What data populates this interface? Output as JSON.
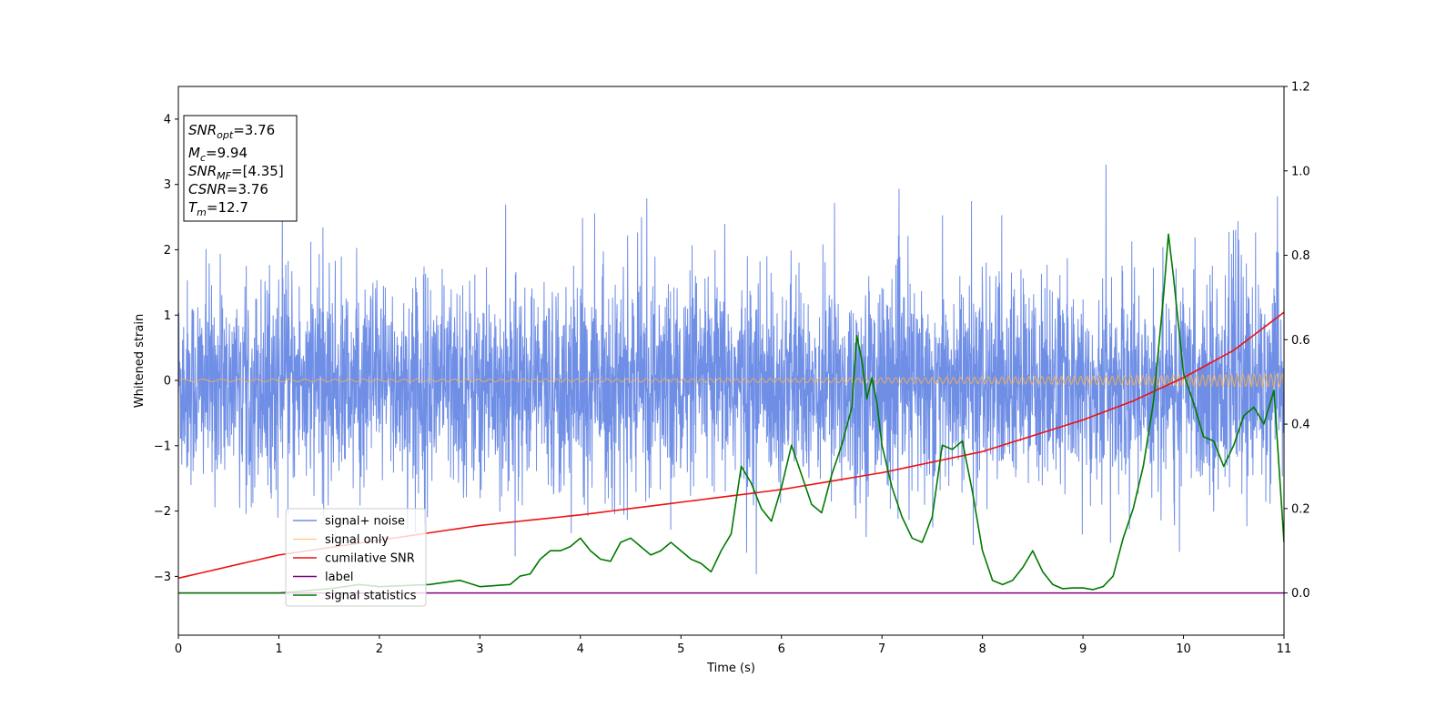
{
  "chart_data": {
    "type": "line",
    "xlabel": "Time (s)",
    "ylabel": "Whitened strain",
    "xlim": [
      0,
      11
    ],
    "ylim": [
      -3.9,
      4.5
    ],
    "y2lim": [
      -0.1,
      1.2
    ],
    "x_ticks": [
      "0",
      "1",
      "2",
      "3",
      "4",
      "5",
      "6",
      "7",
      "8",
      "9",
      "10",
      "11"
    ],
    "y_ticks": [
      "−3",
      "−2",
      "−1",
      "0",
      "1",
      "2",
      "3",
      "4"
    ],
    "y2_ticks": [
      "0.0",
      "0.2",
      "0.4",
      "0.6",
      "0.8",
      "1.0",
      "1.2"
    ],
    "grid": false,
    "legend_position": "lower-left",
    "colors": {
      "noise": "#6f8ee6",
      "signal": "#ffb347",
      "snr": "#ee1111",
      "label": "#800080",
      "stat": "#007a00"
    },
    "annotation": [
      {
        "base": "SNR",
        "sub": "opt",
        "rest": "=3.76"
      },
      {
        "base": "M",
        "sub": "c",
        "rest": "=9.94"
      },
      {
        "base": "SNR",
        "sub": "MF",
        "rest": "=[4.35]"
      },
      {
        "base": "CSNR",
        "sub": "",
        "rest": "=3.76"
      },
      {
        "base": "T",
        "sub": "m",
        "rest": "=12.7"
      }
    ],
    "series": [
      {
        "name": "signal+ noise",
        "axis": "left",
        "style": "noise",
        "noise_std": 0.78,
        "mean": -0.05
      },
      {
        "name": "signal only",
        "axis": "left",
        "amplitude_start": 0.02,
        "amplitude_end": 0.1
      },
      {
        "name": "cumilative SNR",
        "axis": "right",
        "x": [
          0,
          1,
          2,
          3,
          4,
          5,
          6,
          7,
          8,
          9,
          9.5,
          10,
          10.5,
          11
        ],
        "y": [
          0.035,
          0.09,
          0.125,
          0.16,
          0.185,
          0.215,
          0.245,
          0.285,
          0.335,
          0.41,
          0.455,
          0.51,
          0.575,
          0.665
        ]
      },
      {
        "name": "label",
        "axis": "right",
        "x": [
          0,
          11
        ],
        "y": [
          0.0,
          0.0
        ]
      },
      {
        "name": "signal statistics",
        "axis": "right",
        "x": [
          0,
          1,
          1.5,
          1.8,
          2,
          2.5,
          2.8,
          3,
          3.3,
          3.4,
          3.5,
          3.6,
          3.7,
          3.8,
          3.9,
          4.0,
          4.1,
          4.2,
          4.3,
          4.4,
          4.5,
          4.6,
          4.7,
          4.8,
          4.9,
          5.0,
          5.1,
          5.2,
          5.3,
          5.4,
          5.5,
          5.6,
          5.7,
          5.8,
          5.9,
          6.0,
          6.1,
          6.2,
          6.3,
          6.4,
          6.5,
          6.6,
          6.7,
          6.75,
          6.8,
          6.85,
          6.9,
          6.95,
          7.0,
          7.1,
          7.2,
          7.3,
          7.4,
          7.5,
          7.6,
          7.7,
          7.8,
          7.9,
          8.0,
          8.1,
          8.2,
          8.3,
          8.4,
          8.5,
          8.6,
          8.7,
          8.8,
          8.9,
          9.0,
          9.1,
          9.2,
          9.3,
          9.4,
          9.5,
          9.6,
          9.7,
          9.8,
          9.85,
          9.9,
          10.0,
          10.1,
          10.2,
          10.3,
          10.4,
          10.5,
          10.6,
          10.7,
          10.8,
          10.9,
          11.0
        ],
        "y": [
          0.0,
          0.0,
          0.01,
          0.02,
          0.015,
          0.02,
          0.03,
          0.015,
          0.02,
          0.04,
          0.045,
          0.08,
          0.1,
          0.1,
          0.11,
          0.13,
          0.1,
          0.08,
          0.075,
          0.12,
          0.13,
          0.11,
          0.09,
          0.1,
          0.12,
          0.1,
          0.08,
          0.07,
          0.05,
          0.1,
          0.14,
          0.3,
          0.26,
          0.2,
          0.17,
          0.25,
          0.35,
          0.28,
          0.21,
          0.19,
          0.28,
          0.35,
          0.44,
          0.61,
          0.55,
          0.46,
          0.51,
          0.45,
          0.35,
          0.25,
          0.18,
          0.13,
          0.12,
          0.18,
          0.35,
          0.34,
          0.36,
          0.24,
          0.1,
          0.03,
          0.02,
          0.03,
          0.06,
          0.1,
          0.05,
          0.02,
          0.01,
          0.012,
          0.012,
          0.008,
          0.015,
          0.04,
          0.13,
          0.2,
          0.3,
          0.45,
          0.7,
          0.85,
          0.75,
          0.52,
          0.45,
          0.37,
          0.36,
          0.3,
          0.35,
          0.42,
          0.44,
          0.4,
          0.48,
          0.12
        ]
      }
    ]
  }
}
